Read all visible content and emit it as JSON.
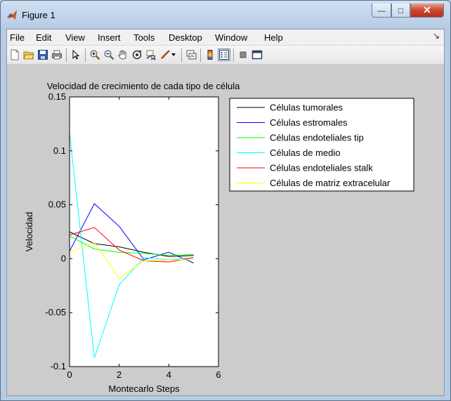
{
  "window": {
    "title": "Figure 1",
    "minimize_glyph": "—",
    "maximize_glyph": "□",
    "close_glyph": "✕"
  },
  "menu": [
    "File",
    "Edit",
    "View",
    "Insert",
    "Tools",
    "Desktop",
    "Window",
    "Help"
  ],
  "toolbar_icons": [
    "new-figure-icon",
    "open-file-icon",
    "save-icon",
    "print-icon",
    "select-arrow-icon",
    "zoom-in-icon",
    "zoom-out-icon",
    "pan-hand-icon",
    "rotate-3d-icon",
    "data-cursor-icon",
    "brush-icon",
    "brush-dropdown-icon",
    "link-plot-icon",
    "colorbar-icon",
    "legend-icon",
    "hide-plot-tools-icon",
    "show-plot-tools-icon"
  ],
  "colors": {
    "axes_bg": "#ffffff",
    "figure_bg": "#cccccc"
  },
  "chart_data": {
    "type": "line",
    "title": "Velocidad de crecimiento de cada tipo de célula",
    "xlabel": "Montecarlo Steps",
    "ylabel": "Velocidad",
    "xlim": [
      0,
      6
    ],
    "ylim": [
      -0.1,
      0.15
    ],
    "xticks": [
      0,
      2,
      4,
      6
    ],
    "yticks": [
      -0.1,
      -0.05,
      0,
      0.05,
      0.1,
      0.15
    ],
    "ytick_labels": [
      "-0.1",
      "-0.05",
      "0",
      "0.05",
      "0.1",
      "0.15"
    ],
    "legend_position": "right",
    "grid": false,
    "x": [
      0,
      1,
      2,
      3,
      4,
      5
    ],
    "series": [
      {
        "name": "Células tumorales",
        "color": "#000000",
        "values": [
          0.025,
          0.014,
          0.011,
          0.006,
          0.002,
          0.003
        ]
      },
      {
        "name": "Células estromales",
        "color": "#0000ff",
        "values": [
          0.007,
          0.051,
          0.03,
          -0.001,
          0.006,
          -0.004
        ]
      },
      {
        "name": "Células endoteliales tip",
        "color": "#00ff00",
        "values": [
          0.021,
          0.009,
          0.006,
          0.005,
          0.003,
          0.004
        ]
      },
      {
        "name": "Células de medio",
        "color": "#00ffff",
        "values": [
          0.117,
          -0.092,
          -0.024,
          0.001,
          -0.001,
          0.001
        ]
      },
      {
        "name": "Células endoteliales stalk",
        "color": "#ff0000",
        "values": [
          0.022,
          0.029,
          0.008,
          -0.002,
          -0.003,
          0.001
        ]
      },
      {
        "name": "Células de matriz extracelular",
        "color": "#ffff00",
        "values": [
          0.006,
          0.015,
          -0.018,
          -0.002,
          -0.001,
          -0.001
        ]
      }
    ]
  }
}
